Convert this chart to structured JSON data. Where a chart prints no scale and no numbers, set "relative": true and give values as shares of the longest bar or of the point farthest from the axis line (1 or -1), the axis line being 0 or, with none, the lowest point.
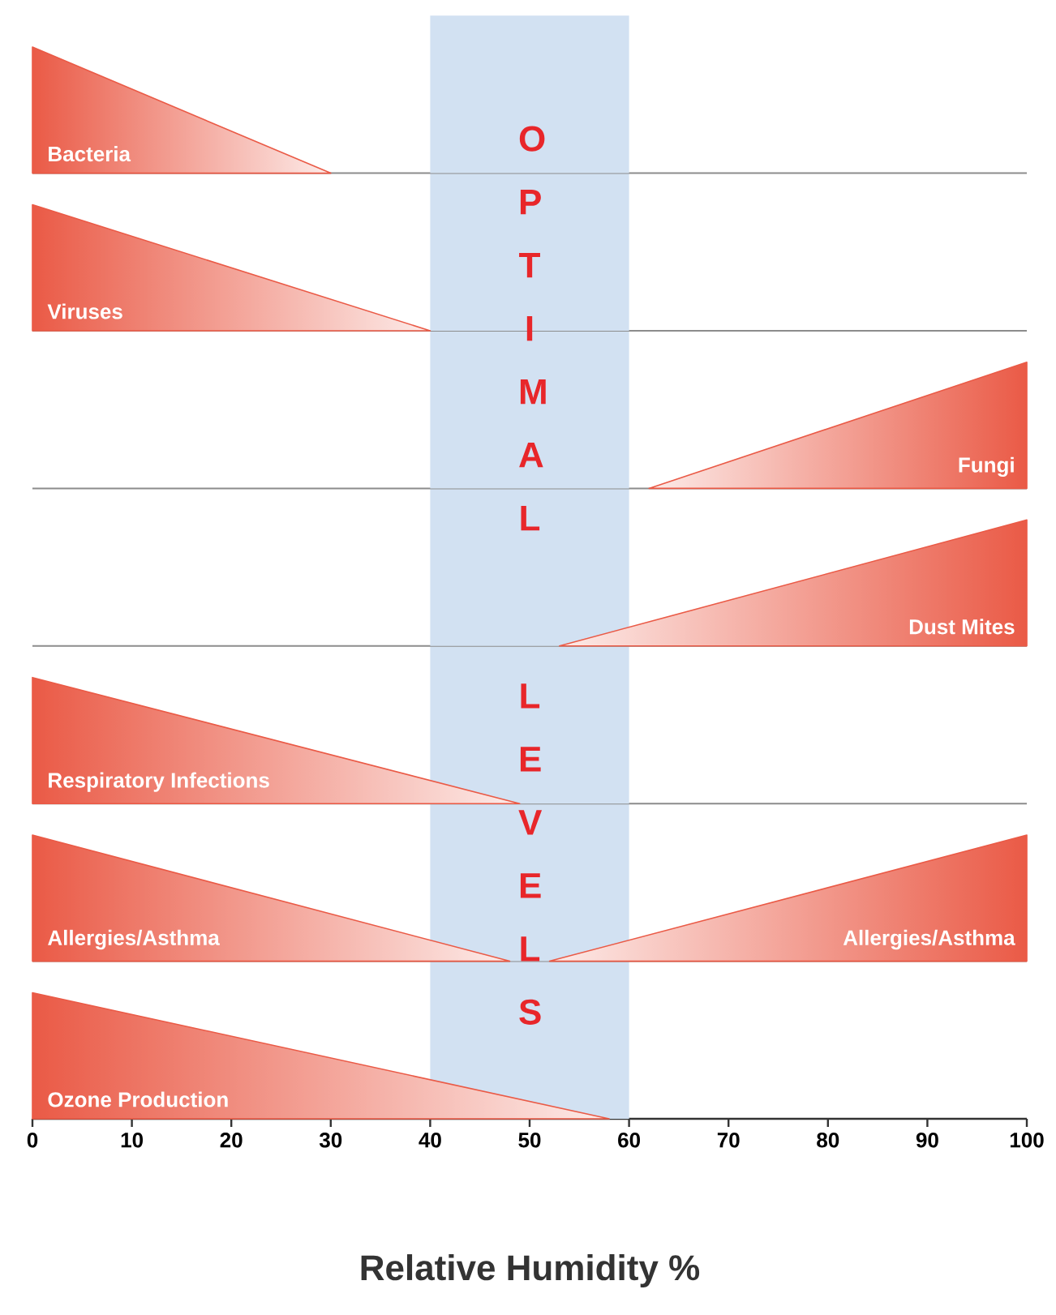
{
  "chart_data": [
    {
      "type": "area",
      "relative": true,
      "xlim": [
        0,
        100
      ],
      "tick_labels": false,
      "bands": [
        {
          "axis": "x",
          "from": 40,
          "to": 60,
          "label": "OPTIMAL",
          "color": "#d2e1f2"
        }
      ],
      "series": [
        {
          "name": "Bacteria",
          "color": "#ea5a46",
          "x": [
            0,
            30
          ],
          "values": [
            1,
            0
          ]
        }
      ]
    },
    {
      "type": "area",
      "relative": true,
      "xlim": [
        0,
        100
      ],
      "tick_labels": false,
      "bands": [
        {
          "axis": "x",
          "from": 40,
          "to": 60,
          "color": "#d2e1f2"
        }
      ],
      "series": [
        {
          "name": "Viruses",
          "color": "#ea5a46",
          "x": [
            0,
            40
          ],
          "values": [
            1,
            0
          ]
        }
      ]
    },
    {
      "type": "area",
      "relative": true,
      "xlim": [
        0,
        100
      ],
      "tick_labels": false,
      "bands": [
        {
          "axis": "x",
          "from": 40,
          "to": 60,
          "color": "#d2e1f2"
        }
      ],
      "series": [
        {
          "name": "Fungi",
          "color": "#ea5a46",
          "x": [
            62,
            100
          ],
          "values": [
            0,
            1
          ]
        }
      ]
    },
    {
      "type": "area",
      "relative": true,
      "xlim": [
        0,
        100
      ],
      "tick_labels": false,
      "bands": [
        {
          "axis": "x",
          "from": 40,
          "to": 60,
          "color": "#d2e1f2"
        }
      ],
      "series": [
        {
          "name": "Dust Mites",
          "color": "#ea5a46",
          "x": [
            53,
            100
          ],
          "values": [
            0,
            1
          ]
        }
      ]
    },
    {
      "type": "area",
      "relative": true,
      "xlim": [
        0,
        100
      ],
      "tick_labels": false,
      "bands": [
        {
          "axis": "x",
          "from": 40,
          "to": 60,
          "label": "LEVELS",
          "color": "#d2e1f2"
        }
      ],
      "series": [
        {
          "name": "Respiratory Infections",
          "color": "#ea5a46",
          "x": [
            0,
            49
          ],
          "values": [
            1,
            0
          ]
        }
      ]
    },
    {
      "type": "area",
      "relative": true,
      "xlim": [
        0,
        100
      ],
      "tick_labels": false,
      "bands": [
        {
          "axis": "x",
          "from": 40,
          "to": 60,
          "color": "#d2e1f2"
        }
      ],
      "series": [
        {
          "name": "Allergies/Asthma",
          "color": "#ea5a46",
          "x": [
            0,
            48
          ],
          "values": [
            1,
            0
          ]
        },
        {
          "name": "Allergies/Asthma",
          "color": "#ea5a46",
          "x": [
            52,
            100
          ],
          "values": [
            0,
            1
          ]
        }
      ]
    },
    {
      "type": "area",
      "relative": true,
      "xlim": [
        0,
        100
      ],
      "xticks": [
        0,
        10,
        20,
        30,
        40,
        50,
        60,
        70,
        80,
        90,
        100
      ],
      "tick_labels": "x",
      "xlabel": "Relative Humidity %",
      "bands": [
        {
          "axis": "x",
          "from": 40,
          "to": 60,
          "color": "#d2e1f2"
        }
      ],
      "series": [
        {
          "name": "Ozone Production",
          "color": "#ea5a46",
          "x": [
            0,
            58
          ],
          "values": [
            1,
            0
          ]
        }
      ]
    }
  ]
}
